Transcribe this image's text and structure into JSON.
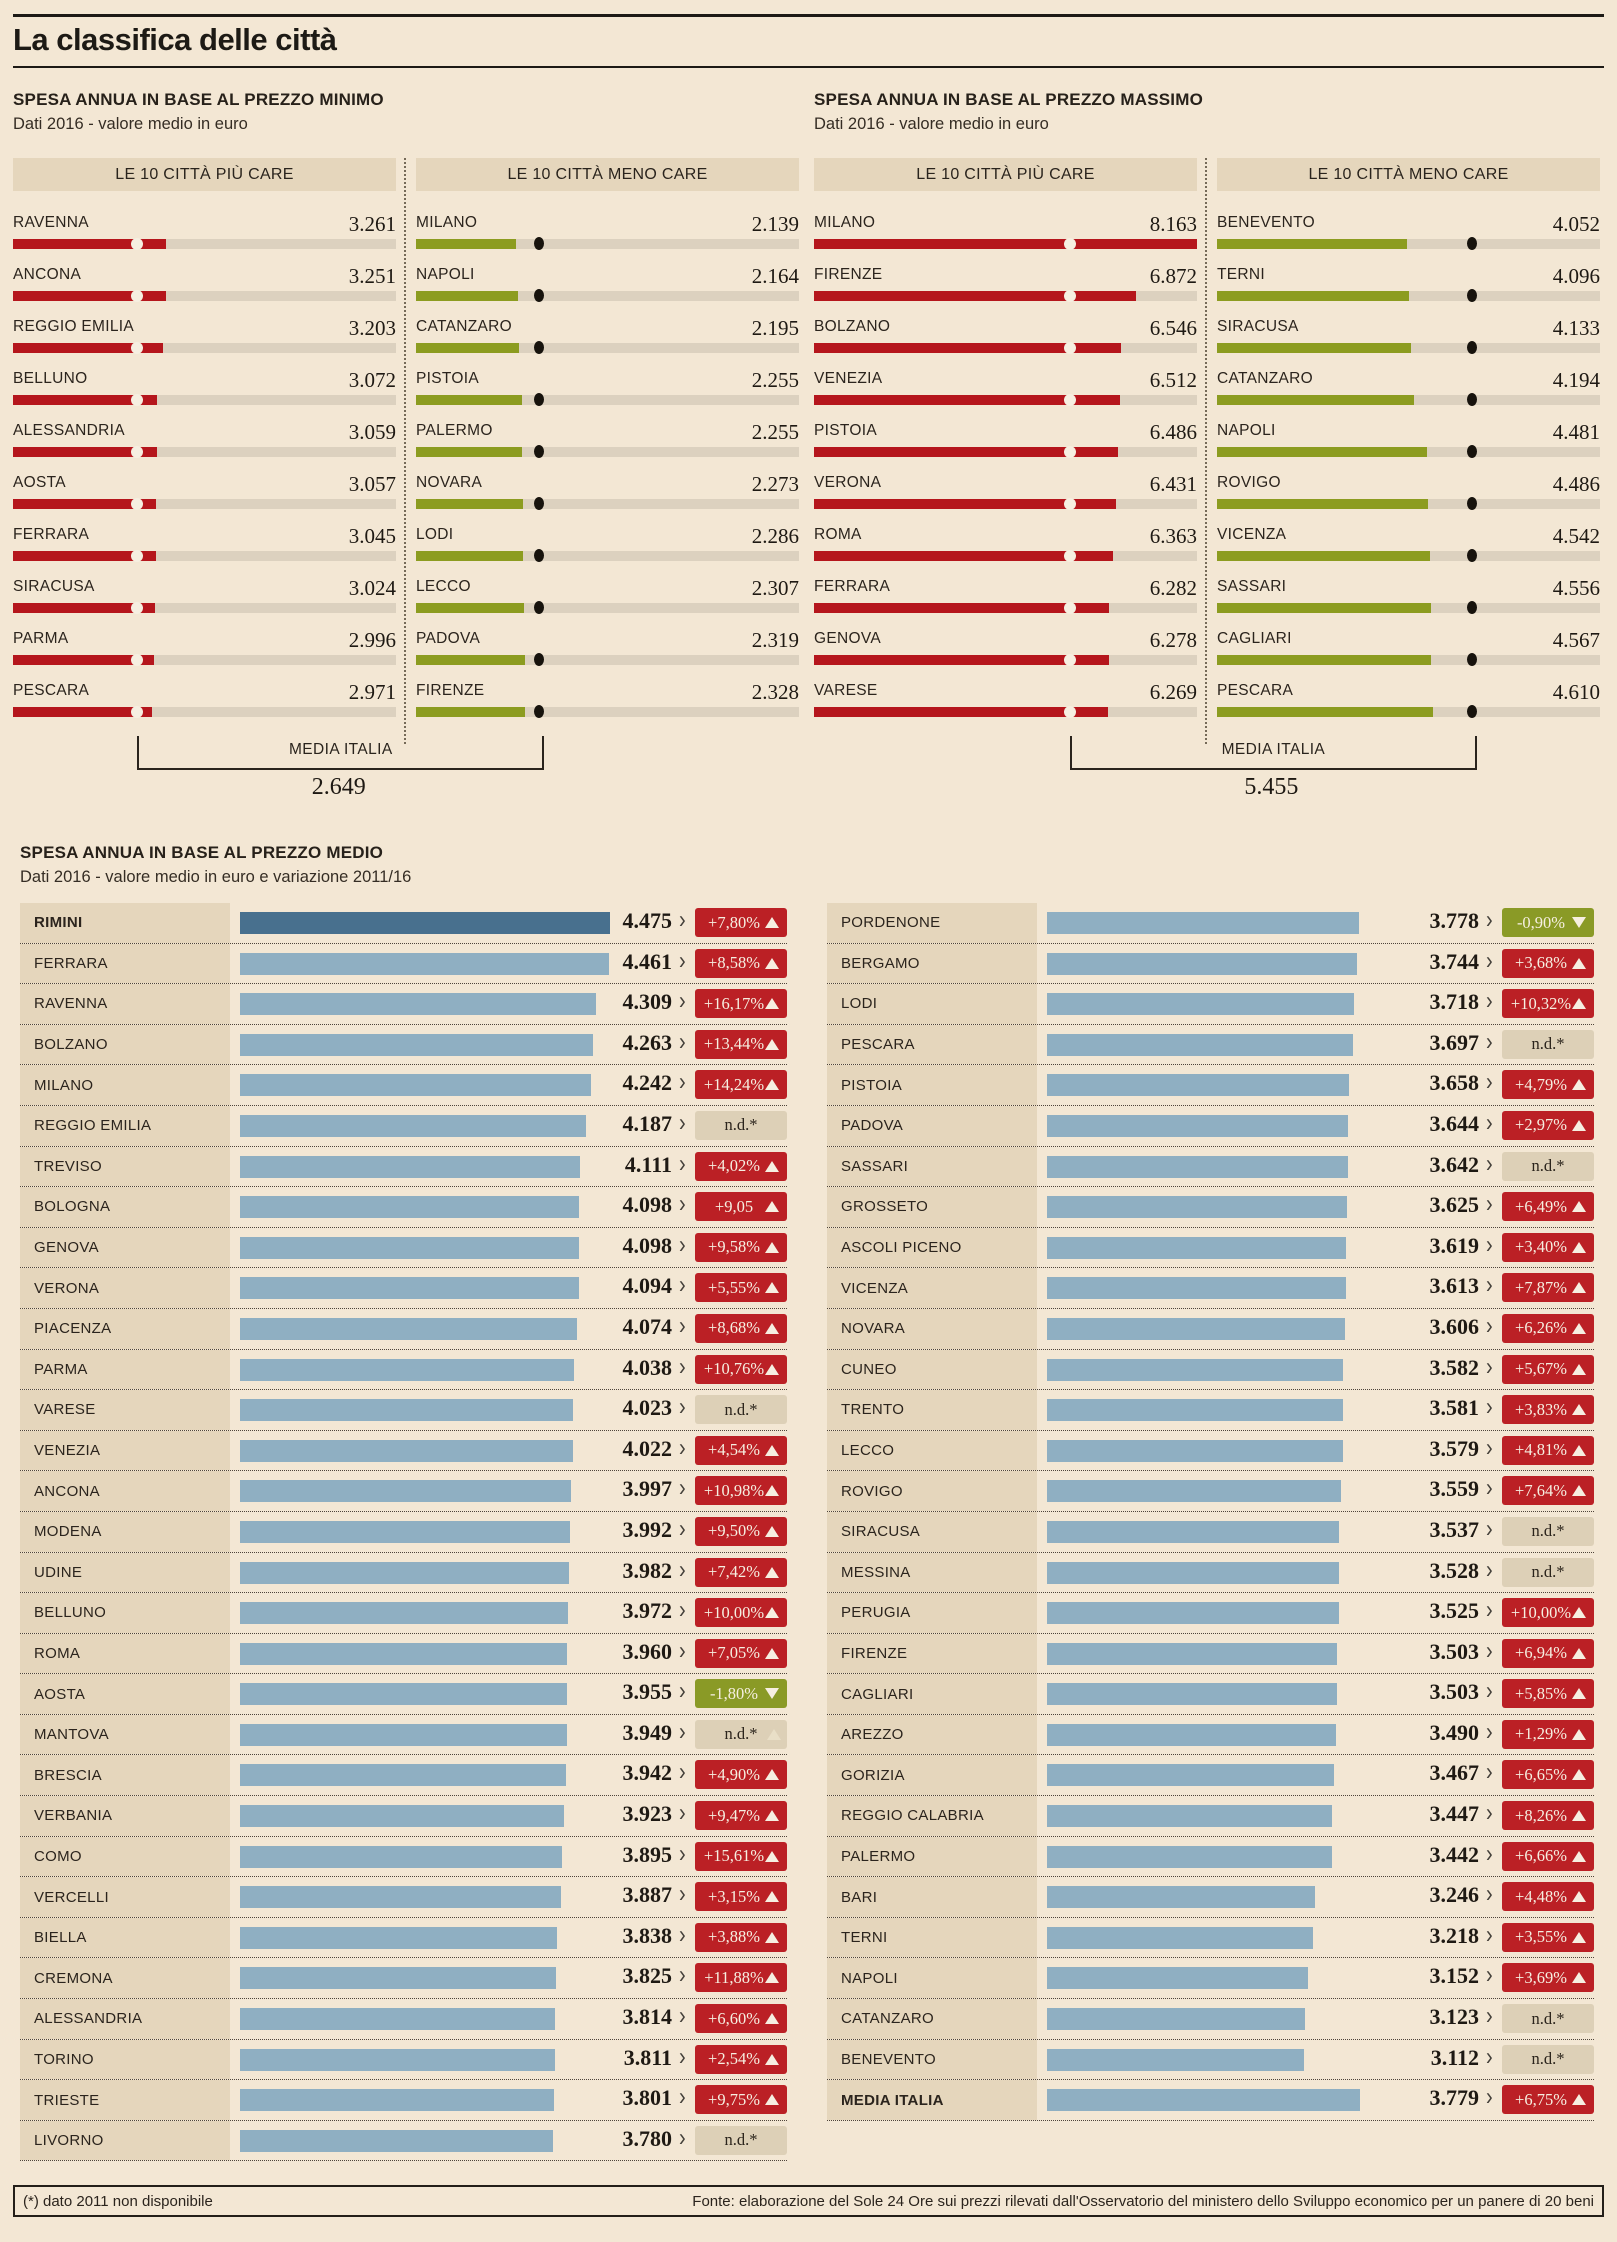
{
  "header": {
    "title": "La classifica delle città"
  },
  "colors": {
    "bg": "#f3e7d4",
    "panel_beige": "#e5d6bc",
    "track": "#dcd1bf",
    "bar_red": "#b5161c",
    "bar_green": "#8c9c20",
    "bar_blue": "#8fafc2",
    "bar_blue_dark": "#48708e",
    "badge_up": "#bb2025",
    "badge_down": "#8a9a26",
    "badge_nd": "#ddd0b7",
    "dot_light": "#f6efe1",
    "dot_dark": "#17130d"
  },
  "glyphs": {
    "chevron": "›"
  },
  "chart_data": [
    {
      "type": "bar",
      "title": "SPESA ANNUA IN BASE AL PREZZO MINIMO",
      "subtitle": "Dati 2016 - valore medio in euro",
      "xlim": [
        0,
        8163
      ],
      "media_label": "MEDIA ITALIA",
      "media_italia": 2649,
      "media_display": "2.649",
      "series": [
        {
          "name": "LE 10 CITTÀ PIÙ CARE",
          "color_key": "bar_red",
          "rows": [
            {
              "label": "RAVENNA",
              "value": 3261,
              "display": "3.261"
            },
            {
              "label": "ANCONA",
              "value": 3251,
              "display": "3.251"
            },
            {
              "label": "REGGIO EMILIA",
              "value": 3203,
              "display": "3.203"
            },
            {
              "label": "BELLUNO",
              "value": 3072,
              "display": "3.072"
            },
            {
              "label": "ALESSANDRIA",
              "value": 3059,
              "display": "3.059"
            },
            {
              "label": "AOSTA",
              "value": 3057,
              "display": "3.057"
            },
            {
              "label": "FERRARA",
              "value": 3045,
              "display": "3.045"
            },
            {
              "label": "SIRACUSA",
              "value": 3024,
              "display": "3.024"
            },
            {
              "label": "PARMA",
              "value": 2996,
              "display": "2.996"
            },
            {
              "label": "PESCARA",
              "value": 2971,
              "display": "2.971"
            }
          ]
        },
        {
          "name": "LE 10 CITTÀ MENO CARE",
          "color_key": "bar_green",
          "rows": [
            {
              "label": "MILANO",
              "value": 2139,
              "display": "2.139"
            },
            {
              "label": "NAPOLI",
              "value": 2164,
              "display": "2.164"
            },
            {
              "label": "CATANZARO",
              "value": 2195,
              "display": "2.195"
            },
            {
              "label": "PISTOIA",
              "value": 2255,
              "display": "2.255"
            },
            {
              "label": "PALERMO",
              "value": 2255,
              "display": "2.255"
            },
            {
              "label": "NOVARA",
              "value": 2273,
              "display": "2.273"
            },
            {
              "label": "LODI",
              "value": 2286,
              "display": "2.286"
            },
            {
              "label": "LECCO",
              "value": 2307,
              "display": "2.307"
            },
            {
              "label": "PADOVA",
              "value": 2319,
              "display": "2.319"
            },
            {
              "label": "FIRENZE",
              "value": 2328,
              "display": "2.328"
            }
          ]
        }
      ]
    },
    {
      "type": "bar",
      "title": "SPESA ANNUA IN BASE AL PREZZO MASSIMO",
      "subtitle": "Dati 2016 - valore medio in euro",
      "xlim": [
        0,
        8163
      ],
      "media_label": "MEDIA ITALIA",
      "media_italia": 5455,
      "media_display": "5.455",
      "series": [
        {
          "name": "LE 10 CITTÀ PIÙ CARE",
          "color_key": "bar_red",
          "rows": [
            {
              "label": "MILANO",
              "value": 8163,
              "display": "8.163"
            },
            {
              "label": "FIRENZE",
              "value": 6872,
              "display": "6.872"
            },
            {
              "label": "BOLZANO",
              "value": 6546,
              "display": "6.546"
            },
            {
              "label": "VENEZIA",
              "value": 6512,
              "display": "6.512"
            },
            {
              "label": "PISTOIA",
              "value": 6486,
              "display": "6.486"
            },
            {
              "label": "VERONA",
              "value": 6431,
              "display": "6.431"
            },
            {
              "label": "ROMA",
              "value": 6363,
              "display": "6.363"
            },
            {
              "label": "FERRARA",
              "value": 6282,
              "display": "6.282"
            },
            {
              "label": "GENOVA",
              "value": 6278,
              "display": "6.278"
            },
            {
              "label": "VARESE",
              "value": 6269,
              "display": "6.269"
            }
          ]
        },
        {
          "name": "LE 10 CITTÀ MENO CARE",
          "color_key": "bar_green",
          "rows": [
            {
              "label": "BENEVENTO",
              "value": 4052,
              "display": "4.052"
            },
            {
              "label": "TERNI",
              "value": 4096,
              "display": "4.096"
            },
            {
              "label": "SIRACUSA",
              "value": 4133,
              "display": "4.133"
            },
            {
              "label": "CATANZARO",
              "value": 4194,
              "display": "4.194"
            },
            {
              "label": "NAPOLI",
              "value": 4481,
              "display": "4.481"
            },
            {
              "label": "ROVIGO",
              "value": 4486,
              "display": "4.486"
            },
            {
              "label": "VICENZA",
              "value": 4542,
              "display": "4.542"
            },
            {
              "label": "SASSARI",
              "value": 4556,
              "display": "4.556"
            },
            {
              "label": "CAGLIARI",
              "value": 4567,
              "display": "4.567"
            },
            {
              "label": "PESCARA",
              "value": 4610,
              "display": "4.610"
            }
          ]
        }
      ]
    },
    {
      "type": "bar",
      "title": "SPESA ANNUA IN BASE AL PREZZO MEDIO",
      "subtitle": "Dati 2016 - valore medio in euro e variazione 2011/16",
      "xlim": [
        0,
        4475
      ],
      "columns": [
        {
          "rows": [
            {
              "label": "RIMINI",
              "value": 4475,
              "display": "4.475",
              "change": "+7,80%",
              "dir": "up",
              "emphasis": true
            },
            {
              "label": "FERRARA",
              "value": 4461,
              "display": "4.461",
              "change": "+8,58%",
              "dir": "up"
            },
            {
              "label": "RAVENNA",
              "value": 4309,
              "display": "4.309",
              "change": "+16,17%",
              "dir": "up"
            },
            {
              "label": "BOLZANO",
              "value": 4263,
              "display": "4.263",
              "change": "+13,44%",
              "dir": "up"
            },
            {
              "label": "MILANO",
              "value": 4242,
              "display": "4.242",
              "change": "+14,24%",
              "dir": "up"
            },
            {
              "label": "REGGIO EMILIA",
              "value": 4187,
              "display": "4.187",
              "change": "n.d.*",
              "dir": "nd"
            },
            {
              "label": "TREVISO",
              "value": 4111,
              "display": "4.111",
              "change": "+4,02%",
              "dir": "up"
            },
            {
              "label": "BOLOGNA",
              "value": 4098,
              "display": "4.098",
              "change": "+9,05",
              "dir": "up"
            },
            {
              "label": "GENOVA",
              "value": 4098,
              "display": "4.098",
              "change": "+9,58%",
              "dir": "up"
            },
            {
              "label": "VERONA",
              "value": 4094,
              "display": "4.094",
              "change": "+5,55%",
              "dir": "up"
            },
            {
              "label": "PIACENZA",
              "value": 4074,
              "display": "4.074",
              "change": "+8,68%",
              "dir": "up"
            },
            {
              "label": "PARMA",
              "value": 4038,
              "display": "4.038",
              "change": "+10,76%",
              "dir": "up"
            },
            {
              "label": "VARESE",
              "value": 4023,
              "display": "4.023",
              "change": "n.d.*",
              "dir": "nd"
            },
            {
              "label": "VENEZIA",
              "value": 4022,
              "display": "4.022",
              "change": "+4,54%",
              "dir": "up"
            },
            {
              "label": "ANCONA",
              "value": 3997,
              "display": "3.997",
              "change": "+10,98%",
              "dir": "up"
            },
            {
              "label": "MODENA",
              "value": 3992,
              "display": "3.992",
              "change": "+9,50%",
              "dir": "up"
            },
            {
              "label": "UDINE",
              "value": 3982,
              "display": "3.982",
              "change": "+7,42%",
              "dir": "up"
            },
            {
              "label": "BELLUNO",
              "value": 3972,
              "display": "3.972",
              "change": "+10,00%",
              "dir": "up"
            },
            {
              "label": "ROMA",
              "value": 3960,
              "display": "3.960",
              "change": "+7,05%",
              "dir": "up"
            },
            {
              "label": "AOSTA",
              "value": 3955,
              "display": "3.955",
              "change": "-1,80%",
              "dir": "down"
            },
            {
              "label": "MANTOVA",
              "value": 3949,
              "display": "3.949",
              "change": "n.d.*",
              "dir": "nd",
              "ghost": true
            },
            {
              "label": "BRESCIA",
              "value": 3942,
              "display": "3.942",
              "change": "+4,90%",
              "dir": "up"
            },
            {
              "label": "VERBANIA",
              "value": 3923,
              "display": "3.923",
              "change": "+9,47%",
              "dir": "up"
            },
            {
              "label": "COMO",
              "value": 3895,
              "display": "3.895",
              "change": "+15,61%",
              "dir": "up"
            },
            {
              "label": "VERCELLI",
              "value": 3887,
              "display": "3.887",
              "change": "+3,15%",
              "dir": "up"
            },
            {
              "label": "BIELLA",
              "value": 3838,
              "display": "3.838",
              "change": "+3,88%",
              "dir": "up"
            },
            {
              "label": "CREMONA",
              "value": 3825,
              "display": "3.825",
              "change": "+11,88%",
              "dir": "up"
            },
            {
              "label": "ALESSANDRIA",
              "value": 3814,
              "display": "3.814",
              "change": "+6,60%",
              "dir": "up"
            },
            {
              "label": "TORINO",
              "value": 3811,
              "display": "3.811",
              "change": "+2,54%",
              "dir": "up"
            },
            {
              "label": "TRIESTE",
              "value": 3801,
              "display": "3.801",
              "change": "+9,75%",
              "dir": "up"
            },
            {
              "label": "LIVORNO",
              "value": 3780,
              "display": "3.780",
              "change": "n.d.*",
              "dir": "nd"
            }
          ]
        },
        {
          "rows": [
            {
              "label": "PORDENONE",
              "value": 3778,
              "display": "3.778",
              "change": "-0,90%",
              "dir": "down"
            },
            {
              "label": "BERGAMO",
              "value": 3744,
              "display": "3.744",
              "change": "+3,68%",
              "dir": "up"
            },
            {
              "label": "LODI",
              "value": 3718,
              "display": "3.718",
              "change": "+10,32%",
              "dir": "up"
            },
            {
              "label": "PESCARA",
              "value": 3697,
              "display": "3.697",
              "change": "n.d.*",
              "dir": "nd"
            },
            {
              "label": "PISTOIA",
              "value": 3658,
              "display": "3.658",
              "change": "+4,79%",
              "dir": "up"
            },
            {
              "label": "PADOVA",
              "value": 3644,
              "display": "3.644",
              "change": "+2,97%",
              "dir": "up"
            },
            {
              "label": "SASSARI",
              "value": 3642,
              "display": "3.642",
              "change": "n.d.*",
              "dir": "nd"
            },
            {
              "label": "GROSSETO",
              "value": 3625,
              "display": "3.625",
              "change": "+6,49%",
              "dir": "up"
            },
            {
              "label": "ASCOLI PICENO",
              "value": 3619,
              "display": "3.619",
              "change": "+3,40%",
              "dir": "up"
            },
            {
              "label": "VICENZA",
              "value": 3613,
              "display": "3.613",
              "change": "+7,87%",
              "dir": "up"
            },
            {
              "label": "NOVARA",
              "value": 3606,
              "display": "3.606",
              "change": "+6,26%",
              "dir": "up"
            },
            {
              "label": "CUNEO",
              "value": 3582,
              "display": "3.582",
              "change": "+5,67%",
              "dir": "up"
            },
            {
              "label": "TRENTO",
              "value": 3581,
              "display": "3.581",
              "change": "+3,83%",
              "dir": "up"
            },
            {
              "label": "LECCO",
              "value": 3579,
              "display": "3.579",
              "change": "+4,81%",
              "dir": "up"
            },
            {
              "label": "ROVIGO",
              "value": 3559,
              "display": "3.559",
              "change": "+7,64%",
              "dir": "up"
            },
            {
              "label": "SIRACUSA",
              "value": 3537,
              "display": "3.537",
              "change": "n.d.*",
              "dir": "nd"
            },
            {
              "label": "MESSINA",
              "value": 3528,
              "display": "3.528",
              "change": "n.d.*",
              "dir": "nd"
            },
            {
              "label": "PERUGIA",
              "value": 3525,
              "display": "3.525",
              "change": "+10,00%",
              "dir": "up"
            },
            {
              "label": "FIRENZE",
              "value": 3503,
              "display": "3.503",
              "change": "+6,94%",
              "dir": "up"
            },
            {
              "label": "CAGLIARI",
              "value": 3503,
              "display": "3.503",
              "change": "+5,85%",
              "dir": "up"
            },
            {
              "label": "AREZZO",
              "value": 3490,
              "display": "3.490",
              "change": "+1,29%",
              "dir": "up"
            },
            {
              "label": "GORIZIA",
              "value": 3467,
              "display": "3.467",
              "change": "+6,65%",
              "dir": "up"
            },
            {
              "label": "REGGIO CALABRIA",
              "value": 3447,
              "display": "3.447",
              "change": "+8,26%",
              "dir": "up"
            },
            {
              "label": "PALERMO",
              "value": 3442,
              "display": "3.442",
              "change": "+6,66%",
              "dir": "up"
            },
            {
              "label": "BARI",
              "value": 3246,
              "display": "3.246",
              "change": "+4,48%",
              "dir": "up"
            },
            {
              "label": "TERNI",
              "value": 3218,
              "display": "3.218",
              "change": "+3,55%",
              "dir": "up"
            },
            {
              "label": "NAPOLI",
              "value": 3152,
              "display": "3.152",
              "change": "+3,69%",
              "dir": "up"
            },
            {
              "label": "CATANZARO",
              "value": 3123,
              "display": "3.123",
              "change": "n.d.*",
              "dir": "nd"
            },
            {
              "label": "BENEVENTO",
              "value": 3112,
              "display": "3.112",
              "change": "n.d.*",
              "dir": "nd"
            },
            {
              "label": "MEDIA ITALIA",
              "value": 3779,
              "display": "3.779",
              "change": "+6,75%",
              "dir": "up",
              "emphasis": true
            }
          ]
        }
      ]
    }
  ],
  "footer": {
    "note": "(*) dato 2011 non disponibile",
    "source": "Fonte: elaborazione del Sole 24 Ore sui prezzi rilevati dall'Osservatorio del ministero dello Sviluppo economico per un panere di 20 beni"
  }
}
